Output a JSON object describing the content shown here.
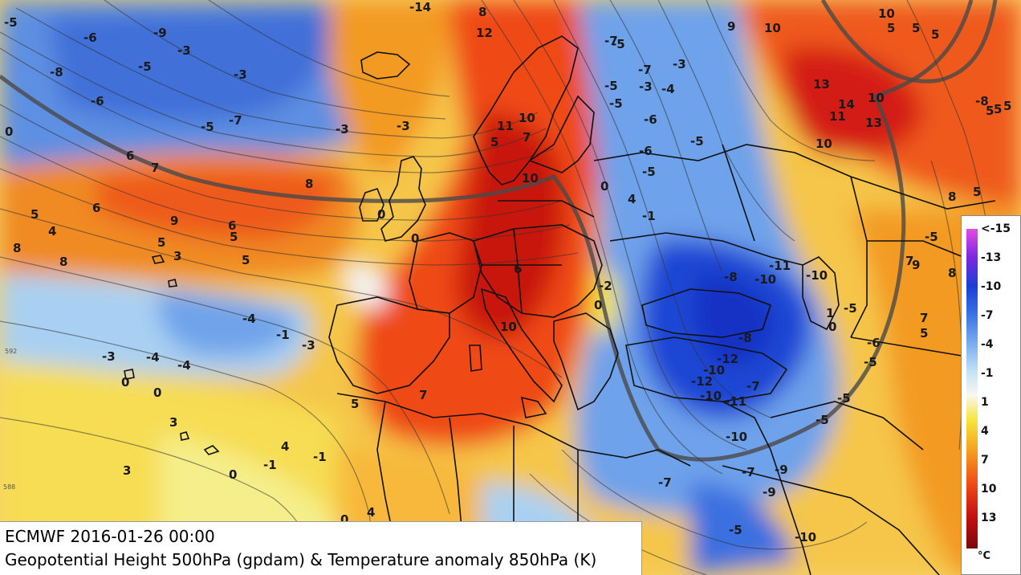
{
  "caption": {
    "line1": "ECMWF 2016-01-26 00:00",
    "line2": "Geopotential Height 500hPa (gpdam) & Temperature anomaly 850hPa (K)"
  },
  "legend": {
    "ticks": [
      "<-15",
      "-13",
      "-10",
      "-7",
      "-4",
      "-1",
      "1",
      "4",
      "7",
      "10",
      "13"
    ],
    "unit": "°C",
    "colors": [
      "#e34ce3",
      "#7a28e0",
      "#1a3fd6",
      "#3b74e6",
      "#7aaef0",
      "#c6e4f8",
      "#f8f7f0",
      "#f6e53a",
      "#f59a1e",
      "#ef4a18",
      "#c5100f",
      "#7a0a0a"
    ]
  },
  "map_labels": [
    {
      "text": "-5"
    },
    {
      "text": "-6"
    },
    {
      "text": "-9"
    },
    {
      "text": "-3"
    },
    {
      "text": "-5"
    },
    {
      "text": "-8"
    },
    {
      "text": "-3"
    },
    {
      "text": "-6"
    },
    {
      "text": "-7"
    },
    {
      "text": "-5"
    },
    {
      "text": "-3"
    },
    {
      "text": "-3"
    },
    {
      "text": "0"
    },
    {
      "text": "6"
    },
    {
      "text": "7"
    },
    {
      "text": "8"
    },
    {
      "text": "5"
    },
    {
      "text": "6"
    },
    {
      "text": "4"
    },
    {
      "text": "9"
    },
    {
      "text": "6"
    },
    {
      "text": "5"
    },
    {
      "text": "5"
    },
    {
      "text": "8"
    },
    {
      "text": "3"
    },
    {
      "text": "5"
    },
    {
      "text": "8"
    },
    {
      "text": "-4"
    },
    {
      "text": "-1"
    },
    {
      "text": "-3"
    },
    {
      "text": "-3"
    },
    {
      "text": "-4"
    },
    {
      "text": "-4"
    },
    {
      "text": "0"
    },
    {
      "text": "0"
    },
    {
      "text": "3"
    },
    {
      "text": "4"
    },
    {
      "text": "-1"
    },
    {
      "text": "-1"
    },
    {
      "text": "3"
    },
    {
      "text": "0"
    },
    {
      "text": "4"
    },
    {
      "text": "0"
    },
    {
      "text": "-14"
    },
    {
      "text": "8"
    },
    {
      "text": "12"
    },
    {
      "text": "11"
    },
    {
      "text": "10"
    },
    {
      "text": "10"
    },
    {
      "text": "5"
    },
    {
      "text": "6"
    },
    {
      "text": "7"
    },
    {
      "text": "7"
    },
    {
      "text": "10"
    },
    {
      "text": "5"
    },
    {
      "text": "0"
    },
    {
      "text": "0"
    },
    {
      "text": "-7"
    },
    {
      "text": "-5"
    },
    {
      "text": "-7"
    },
    {
      "text": "-5"
    },
    {
      "text": "-3"
    },
    {
      "text": "-4"
    },
    {
      "text": "-3"
    },
    {
      "text": "-5"
    },
    {
      "text": "-6"
    },
    {
      "text": "-5"
    },
    {
      "text": "-6"
    },
    {
      "text": "-5"
    },
    {
      "text": "4"
    },
    {
      "text": "0"
    },
    {
      "text": "-1"
    },
    {
      "text": "-2"
    },
    {
      "text": "0"
    },
    {
      "text": "9"
    },
    {
      "text": "10"
    },
    {
      "text": "10"
    },
    {
      "text": "5"
    },
    {
      "text": "5"
    },
    {
      "text": "5"
    },
    {
      "text": "13"
    },
    {
      "text": "14"
    },
    {
      "text": "10"
    },
    {
      "text": "11"
    },
    {
      "text": "13"
    },
    {
      "text": "10"
    },
    {
      "text": "-8"
    },
    {
      "text": "5"
    },
    {
      "text": "5"
    },
    {
      "text": "5"
    },
    {
      "text": "-8"
    },
    {
      "text": "-10"
    },
    {
      "text": "-11"
    },
    {
      "text": "-10"
    },
    {
      "text": "-8"
    },
    {
      "text": "-12"
    },
    {
      "text": "-10"
    },
    {
      "text": "-12"
    },
    {
      "text": "-10"
    },
    {
      "text": "-11"
    },
    {
      "text": "-7"
    },
    {
      "text": "-10"
    },
    {
      "text": "-5"
    },
    {
      "text": "1"
    },
    {
      "text": "0"
    },
    {
      "text": "-6"
    },
    {
      "text": "-5"
    },
    {
      "text": "-5"
    },
    {
      "text": "-5"
    },
    {
      "text": "-7"
    },
    {
      "text": "-9"
    },
    {
      "text": "-9"
    },
    {
      "text": "-7"
    },
    {
      "text": "-5"
    },
    {
      "text": "-10"
    },
    {
      "text": "9"
    },
    {
      "text": "7"
    },
    {
      "text": "8"
    },
    {
      "text": "7"
    },
    {
      "text": "5"
    },
    {
      "text": "-5"
    },
    {
      "text": "8"
    },
    {
      "text": "5"
    }
  ],
  "contour_labels": [
    {
      "text": "592"
    },
    {
      "text": "588"
    }
  ]
}
